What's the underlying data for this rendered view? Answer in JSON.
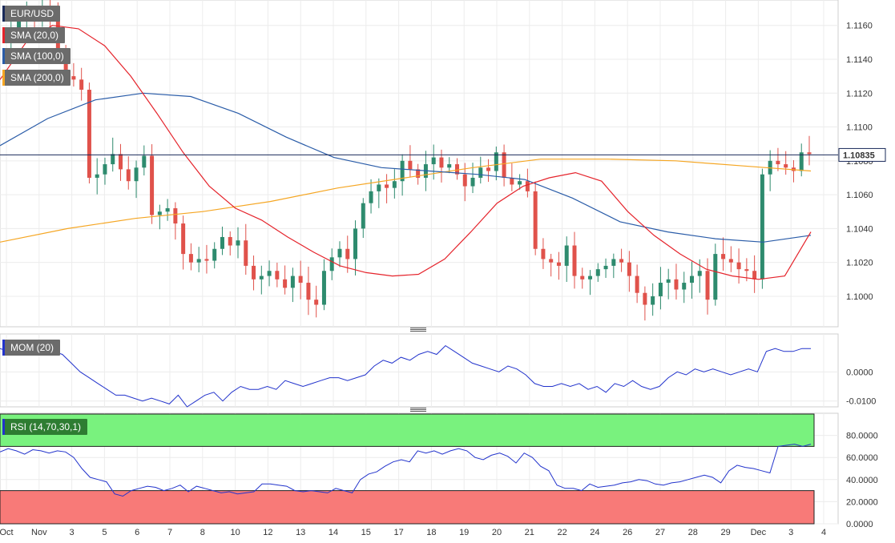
{
  "legends": {
    "symbol": "EUR/USD",
    "sma20": "SMA (20,0)",
    "sma100": "SMA (100,0)",
    "sma200": "SMA (200,0)",
    "mom": "MOM (20)",
    "rsi": "RSI (14,70,30,1)"
  },
  "colors": {
    "up": "#2e8b6e",
    "down": "#e0524b",
    "sma20": "#e5232b",
    "sma100": "#2a5ca8",
    "sma200": "#f5a623",
    "mom": "#2233cc",
    "rsi": "#2233cc",
    "rsi_overbought_fill": "#79f27e",
    "rsi_oversold_fill": "#f87a78",
    "last_price_line": "#1a2a5a"
  },
  "chart_data": [
    {
      "type": "candlestick",
      "title": "EUR/USD",
      "ylim": [
        1.0982,
        1.1175
      ],
      "y_ticks": [
        "1.1160",
        "1.1140",
        "1.1120",
        "1.1100",
        "1.1080",
        "1.1060",
        "1.1040",
        "1.1020",
        "1.1000"
      ],
      "last_price": "1.10835",
      "x_labels": [
        "Oct",
        "Nov",
        "3",
        "5",
        "6",
        "7",
        "8",
        "10",
        "12",
        "13",
        "14",
        "15",
        "17",
        "18",
        "19",
        "20",
        "21",
        "22",
        "24",
        "26",
        "27",
        "28",
        "29",
        "Dec",
        "3",
        "4"
      ],
      "close_path": [
        1.115,
        1.1158,
        1.1163,
        1.1168,
        1.1165,
        1.117,
        1.1166,
        1.1142,
        1.113,
        1.1128,
        1.1122,
        1.107,
        1.1072,
        1.1078,
        1.1084,
        1.1075,
        1.1068,
        1.1076,
        1.1083,
        1.1048,
        1.105,
        1.1052,
        1.1043,
        1.1025,
        1.102,
        1.1022,
        1.1021,
        1.1028,
        1.1035,
        1.103,
        1.1033,
        1.1018,
        1.101,
        1.1012,
        1.1015,
        1.101,
        1.1005,
        1.1012,
        1.1008,
        1.0998,
        1.0995,
        1.1015,
        1.1023,
        1.1028,
        1.1022,
        1.104,
        1.1055,
        1.1062,
        1.1066,
        1.1064,
        1.1068,
        1.108,
        1.1075,
        1.107,
        1.1078,
        1.1082,
        1.1076,
        1.1078,
        1.1072,
        1.1065,
        1.107,
        1.1076,
        1.1074,
        1.1085,
        1.107,
        1.1066,
        1.1068,
        1.1062,
        1.1028,
        1.1022,
        1.102,
        1.1018,
        1.103,
        1.1012,
        1.101,
        1.1012,
        1.1016,
        1.1018,
        1.1022,
        1.102,
        1.1012,
        1.1002,
        1.0995,
        1.1,
        1.1008,
        1.101,
        1.1004,
        1.1008,
        1.1012,
        1.1015,
        1.0998,
        1.1025,
        1.1022,
        1.102,
        1.1016,
        1.1015,
        1.101,
        1.1072,
        1.108,
        1.1078,
        1.1076,
        1.1074,
        1.1085,
        1.1084
      ],
      "series": [
        {
          "name": "SMA (20,0)",
          "values": [
            1.1128,
            1.115,
            1.116,
            1.1158,
            1.1148,
            1.113,
            1.1108,
            1.1085,
            1.1065,
            1.1052,
            1.1045,
            1.1035,
            1.1026,
            1.1018,
            1.1014,
            1.1012,
            1.1013,
            1.1022,
            1.1038,
            1.1055,
            1.1065,
            1.107,
            1.1073,
            1.1068,
            1.105,
            1.1036,
            1.1025,
            1.1016,
            1.1012,
            1.101,
            1.1012,
            1.1038
          ]
        },
        {
          "name": "SMA (100,0)",
          "values": [
            1.1089,
            1.1105,
            1.1116,
            1.112,
            1.1118,
            1.1108,
            1.1094,
            1.1082,
            1.1076,
            1.1074,
            1.1072,
            1.1069,
            1.1058,
            1.1044,
            1.1038,
            1.1034,
            1.1032,
            1.1036
          ]
        },
        {
          "name": "SMA (200,0)",
          "values": [
            1.1032,
            1.104,
            1.1046,
            1.105,
            1.1056,
            1.1064,
            1.107,
            1.1076,
            1.1081,
            1.1081,
            1.108,
            1.1077,
            1.1074
          ]
        }
      ]
    },
    {
      "type": "line",
      "title": "MOM (20)",
      "ylim": [
        -0.012,
        0.013
      ],
      "y_ticks": [
        "0.0000",
        "-0.0100"
      ],
      "series": [
        {
          "name": "MOM (20)",
          "values": [
            0.008,
            0.007,
            0.007,
            0.008,
            0.009,
            0.009,
            0.007,
            0.006,
            0.003,
            0.0,
            -0.002,
            -0.004,
            -0.006,
            -0.008,
            -0.008,
            -0.009,
            -0.01,
            -0.009,
            -0.01,
            -0.011,
            -0.008,
            -0.012,
            -0.01,
            -0.008,
            -0.007,
            -0.01,
            -0.007,
            -0.005,
            -0.006,
            -0.006,
            -0.005,
            -0.006,
            -0.003,
            -0.004,
            -0.005,
            -0.004,
            -0.003,
            -0.002,
            -0.002,
            -0.003,
            -0.002,
            -0.001,
            0.002,
            0.004,
            0.003,
            0.005,
            0.004,
            0.006,
            0.007,
            0.006,
            0.009,
            0.007,
            0.005,
            0.003,
            0.002,
            0.001,
            0.0,
            0.002,
            0.001,
            -0.001,
            -0.004,
            -0.005,
            -0.005,
            -0.004,
            -0.005,
            -0.004,
            -0.006,
            -0.005,
            -0.007,
            -0.004,
            -0.005,
            -0.003,
            -0.005,
            -0.006,
            -0.005,
            -0.002,
            0.0,
            -0.001,
            0.001,
            0.0,
            0.001,
            0.0,
            -0.001,
            0.0,
            0.001,
            0.0,
            0.007,
            0.008,
            0.007,
            0.007,
            0.008,
            0.008
          ]
        }
      ]
    },
    {
      "type": "line",
      "title": "RSI (14,70,30,1)",
      "ylim": [
        0,
        100
      ],
      "y_ticks": [
        "80.0000",
        "60.0000",
        "40.0000",
        "20.0000",
        "0.0000"
      ],
      "bands": {
        "overbought": 70,
        "oversold": 30
      },
      "series": [
        {
          "name": "RSI (14,70,30,1)",
          "values": [
            65,
            68,
            66,
            63,
            67,
            66,
            64,
            66,
            65,
            60,
            50,
            42,
            40,
            38,
            27,
            25,
            30,
            32,
            34,
            33,
            30,
            32,
            35,
            29,
            34,
            32,
            30,
            28,
            29,
            27,
            28,
            29,
            36,
            36,
            35,
            34,
            30,
            29,
            30,
            29,
            28,
            32,
            30,
            28,
            40,
            45,
            47,
            52,
            56,
            58,
            56,
            66,
            64,
            66,
            63,
            66,
            68,
            66,
            60,
            58,
            62,
            64,
            61,
            55,
            64,
            60,
            52,
            48,
            35,
            32,
            32,
            30,
            36,
            33,
            34,
            35,
            37,
            38,
            40,
            39,
            36,
            35,
            37,
            38,
            40,
            42,
            44,
            42,
            37,
            48,
            53,
            51,
            50,
            48,
            46,
            70,
            71,
            72,
            70,
            72
          ]
        }
      ]
    }
  ]
}
